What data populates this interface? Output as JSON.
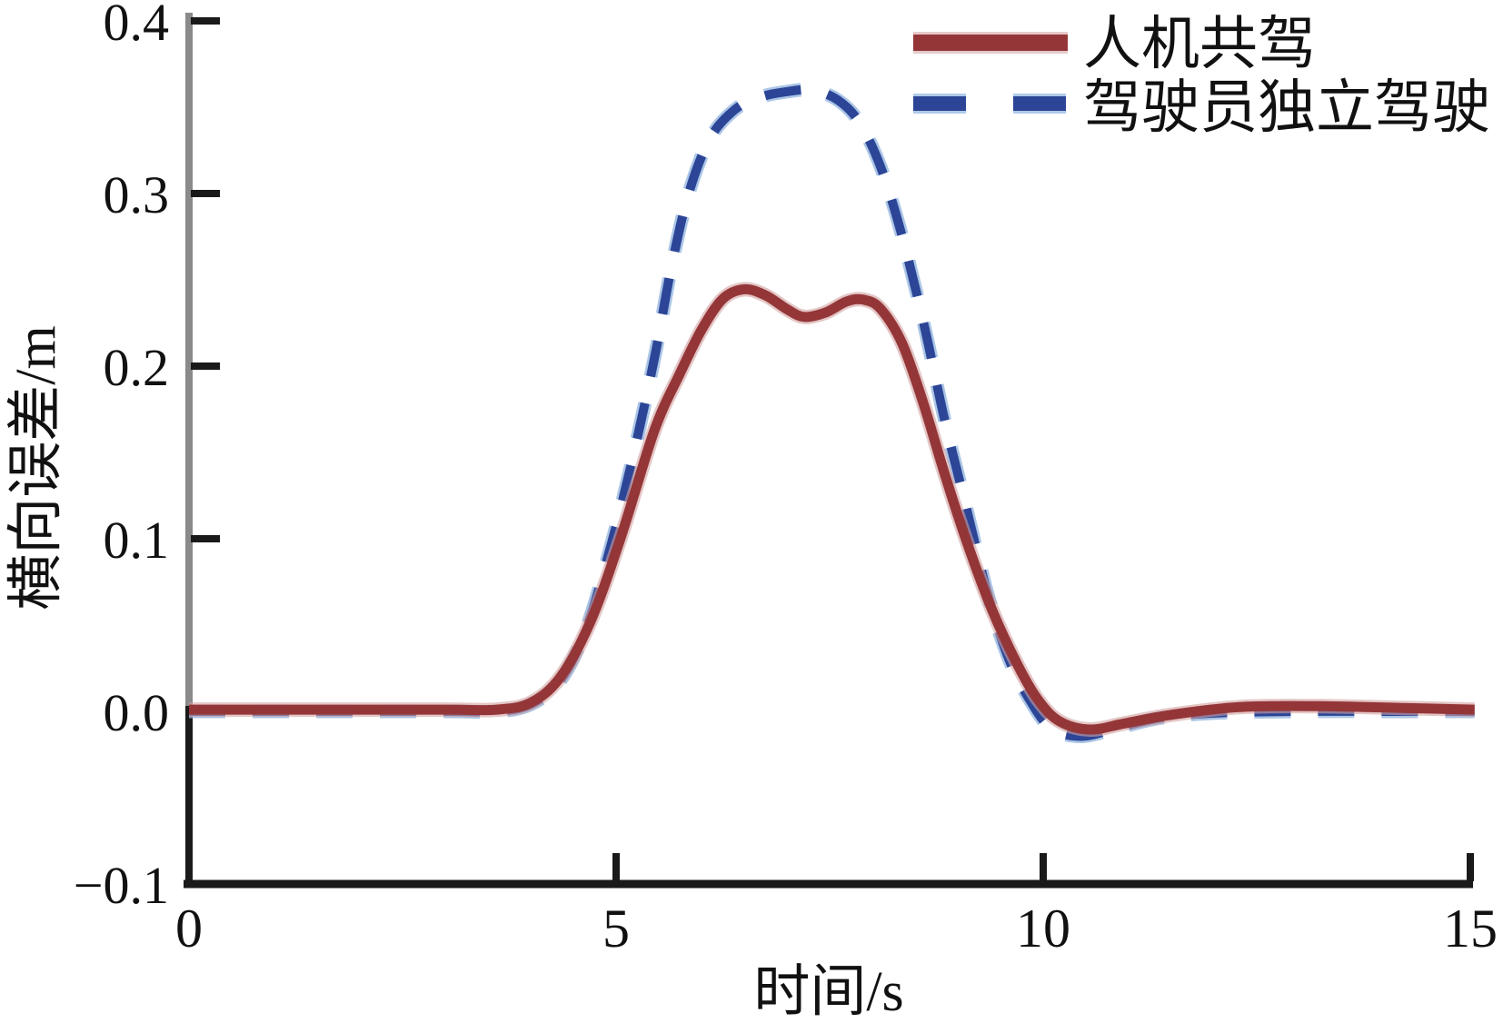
{
  "chart_data": {
    "type": "line",
    "title": "",
    "xlabel": "时间/s",
    "ylabel": "横向误差/m",
    "xlim": [
      0,
      15
    ],
    "ylim": [
      -0.1,
      0.4
    ],
    "grid": false,
    "legend_position": "top-right",
    "xticks": {
      "values": [
        0,
        5,
        10,
        15
      ],
      "labels": [
        "0",
        "5",
        "10",
        "15"
      ]
    },
    "yticks": {
      "values": [
        -0.1,
        0.0,
        0.1,
        0.2,
        0.3,
        0.4
      ],
      "labels": [
        "−0.1",
        "0.0",
        "0.1",
        "0.2",
        "0.3",
        "0.4"
      ]
    },
    "colors": {
      "series_red": "#943638",
      "series_red_halo": "#d2a0a0",
      "series_blue": "#2c4596",
      "series_blue_halo": "#8fb3dd",
      "axis_gray": "#8a8a8a",
      "axis_black": "#1a1a1a"
    },
    "series": [
      {
        "name": "人机共驾",
        "style": "solid",
        "color": "#943638",
        "points": [
          [
            0,
            0.001
          ],
          [
            1.5,
            0.001
          ],
          [
            3,
            0.001
          ],
          [
            3.6,
            0.001
          ],
          [
            4.0,
            0.005
          ],
          [
            4.35,
            0.02
          ],
          [
            4.7,
            0.052
          ],
          [
            5.05,
            0.1
          ],
          [
            5.45,
            0.163
          ],
          [
            5.75,
            0.196
          ],
          [
            6.0,
            0.221
          ],
          [
            6.25,
            0.239
          ],
          [
            6.5,
            0.2445
          ],
          [
            6.75,
            0.241
          ],
          [
            7.0,
            0.233
          ],
          [
            7.2,
            0.2285
          ],
          [
            7.45,
            0.231
          ],
          [
            7.7,
            0.2375
          ],
          [
            7.9,
            0.2385
          ],
          [
            8.1,
            0.233
          ],
          [
            8.35,
            0.213
          ],
          [
            8.6,
            0.178
          ],
          [
            8.85,
            0.137
          ],
          [
            9.1,
            0.099
          ],
          [
            9.4,
            0.059
          ],
          [
            9.7,
            0.027
          ],
          [
            9.95,
            0.006
          ],
          [
            10.2,
            -0.006
          ],
          [
            10.55,
            -0.0105
          ],
          [
            10.95,
            -0.007
          ],
          [
            11.5,
            -0.002
          ],
          [
            12.3,
            0.0025
          ],
          [
            13.2,
            0.003
          ],
          [
            14.2,
            0.002
          ],
          [
            15.05,
            0.001
          ]
        ]
      },
      {
        "name": "驾驶员独立驾驶",
        "style": "dashed",
        "color": "#2c4596",
        "points": [
          [
            0,
            0
          ],
          [
            1.5,
            0
          ],
          [
            3,
            0
          ],
          [
            3.6,
            0
          ],
          [
            4.0,
            0.004
          ],
          [
            4.35,
            0.018
          ],
          [
            4.65,
            0.048
          ],
          [
            4.95,
            0.098
          ],
          [
            5.2,
            0.148
          ],
          [
            5.45,
            0.205
          ],
          [
            5.65,
            0.258
          ],
          [
            5.85,
            0.3
          ],
          [
            6.1,
            0.332
          ],
          [
            6.4,
            0.349
          ],
          [
            6.7,
            0.356
          ],
          [
            7.0,
            0.359
          ],
          [
            7.3,
            0.36
          ],
          [
            7.6,
            0.354
          ],
          [
            7.85,
            0.341
          ],
          [
            8.1,
            0.315
          ],
          [
            8.35,
            0.275
          ],
          [
            8.6,
            0.225
          ],
          [
            8.85,
            0.168
          ],
          [
            9.1,
            0.118
          ],
          [
            9.35,
            0.068
          ],
          [
            9.6,
            0.03
          ],
          [
            9.85,
            0.006
          ],
          [
            10.1,
            -0.01
          ],
          [
            10.45,
            -0.0145
          ],
          [
            10.85,
            -0.01
          ],
          [
            11.35,
            -0.004
          ],
          [
            12.0,
            -0.001
          ],
          [
            13,
            0
          ],
          [
            14,
            0
          ],
          [
            15.05,
            0
          ]
        ]
      }
    ]
  },
  "legend": {
    "items": [
      {
        "label": "人机共驾",
        "swatch": "solid-red-line"
      },
      {
        "label": "驾驶员独立驾驶",
        "swatch": "dashed-blue-line"
      }
    ]
  }
}
